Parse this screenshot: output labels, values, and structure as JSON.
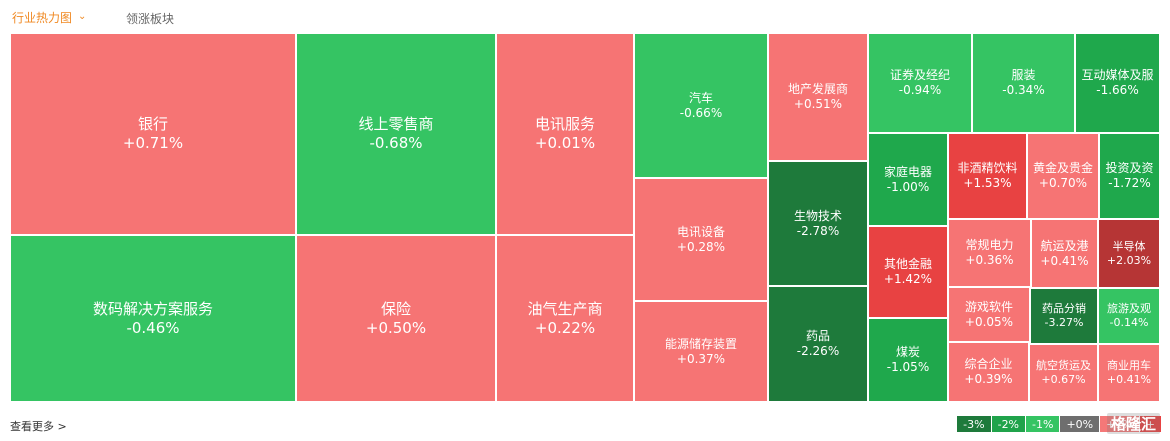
{
  "tabs": {
    "active": "行业热力图",
    "inactive": "领涨板块"
  },
  "footer": {
    "more_label": "查看更多 >"
  },
  "legend": [
    {
      "label": "-3%",
      "color": "#1e7a3b"
    },
    {
      "label": "-2%",
      "color": "#20a34b"
    },
    {
      "label": "-1%",
      "color": "#35c463"
    },
    {
      "label": "+0%",
      "color": "#6e6e6e"
    },
    {
      "label": "+1%",
      "color": "#f47878"
    },
    {
      "label": "+",
      "color": "#e84242"
    }
  ],
  "watermark": "格隆汇",
  "sectors": [
    {
      "name": "银行",
      "change": "+0.71%",
      "color": "#f67474"
    },
    {
      "name": "线上零售商",
      "change": "-0.68%",
      "color": "#35c463"
    },
    {
      "name": "电讯服务",
      "change": "+0.01%",
      "color": "#f67474"
    },
    {
      "name": "汽车",
      "change": "-0.66%",
      "color": "#35c463"
    },
    {
      "name": "地产发展商",
      "change": "+0.51%",
      "color": "#f67474"
    },
    {
      "name": "证券及经纪",
      "change": "-0.94%",
      "color": "#35c463"
    },
    {
      "name": "服装",
      "change": "-0.34%",
      "color": "#35c463"
    },
    {
      "name": "互动媒体及服",
      "change": "-1.66%",
      "color": "#1fa84c"
    },
    {
      "name": "数码解决方案服务",
      "change": "-0.46%",
      "color": "#35c463"
    },
    {
      "name": "保险",
      "change": "+0.50%",
      "color": "#f67474"
    },
    {
      "name": "油气生产商",
      "change": "+0.22%",
      "color": "#f67474"
    },
    {
      "name": "电讯设备",
      "change": "+0.28%",
      "color": "#f67474"
    },
    {
      "name": "能源储存装置",
      "change": "+0.37%",
      "color": "#f67474"
    },
    {
      "name": "生物技术",
      "change": "-2.78%",
      "color": "#1e7a3b"
    },
    {
      "name": "药品",
      "change": "-2.26%",
      "color": "#1e7a3b"
    },
    {
      "name": "家庭电器",
      "change": "-1.00%",
      "color": "#1fa84c"
    },
    {
      "name": "非酒精饮料",
      "change": "+1.53%",
      "color": "#e84242"
    },
    {
      "name": "黄金及贵金",
      "change": "+0.70%",
      "color": "#f67474"
    },
    {
      "name": "投资及资",
      "change": "-1.72%",
      "color": "#1fa84c"
    },
    {
      "name": "其他金融",
      "change": "+1.42%",
      "color": "#e84242"
    },
    {
      "name": "常规电力",
      "change": "+0.36%",
      "color": "#f67474"
    },
    {
      "name": "航运及港",
      "change": "+0.41%",
      "color": "#f67474"
    },
    {
      "name": "半导体",
      "change": "+2.03%",
      "color": "#b63535"
    },
    {
      "name": "游戏软件",
      "change": "+0.05%",
      "color": "#f67474"
    },
    {
      "name": "药品分销",
      "change": "-3.27%",
      "color": "#1e7a3b"
    },
    {
      "name": "旅游及观",
      "change": "-0.14%",
      "color": "#35c463"
    },
    {
      "name": "煤炭",
      "change": "-1.05%",
      "color": "#1fa84c"
    },
    {
      "name": "综合企业",
      "change": "+0.39%",
      "color": "#f67474"
    },
    {
      "name": "航空货运及",
      "change": "+0.67%",
      "color": "#f67474"
    },
    {
      "name": "商业用车",
      "change": "+0.41%",
      "color": "#f67474"
    }
  ]
}
